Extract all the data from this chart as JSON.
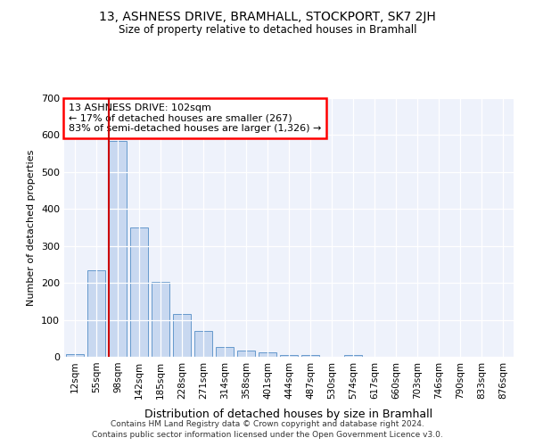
{
  "title": "13, ASHNESS DRIVE, BRAMHALL, STOCKPORT, SK7 2JH",
  "subtitle": "Size of property relative to detached houses in Bramhall",
  "xlabel": "Distribution of detached houses by size in Bramhall",
  "ylabel": "Number of detached properties",
  "footer_line1": "Contains HM Land Registry data © Crown copyright and database right 2024.",
  "footer_line2": "Contains public sector information licensed under the Open Government Licence v3.0.",
  "annotation_line1": "13 ASHNESS DRIVE: 102sqm",
  "annotation_line2": "← 17% of detached houses are smaller (267)",
  "annotation_line3": "83% of semi-detached houses are larger (1,326) →",
  "bar_color": "#c8d8f0",
  "bar_edge_color": "#6699cc",
  "vline_color": "#cc0000",
  "background_color": "#eef2fb",
  "categories": [
    "12sqm",
    "55sqm",
    "98sqm",
    "142sqm",
    "185sqm",
    "228sqm",
    "271sqm",
    "314sqm",
    "358sqm",
    "401sqm",
    "444sqm",
    "487sqm",
    "530sqm",
    "574sqm",
    "617sqm",
    "660sqm",
    "703sqm",
    "746sqm",
    "790sqm",
    "833sqm",
    "876sqm"
  ],
  "values": [
    7,
    235,
    585,
    350,
    203,
    116,
    70,
    27,
    18,
    12,
    5,
    5,
    0,
    5,
    0,
    0,
    0,
    0,
    0,
    0,
    0
  ],
  "vline_x_index": 2,
  "ylim": [
    0,
    700
  ],
  "yticks": [
    0,
    100,
    200,
    300,
    400,
    500,
    600,
    700
  ]
}
